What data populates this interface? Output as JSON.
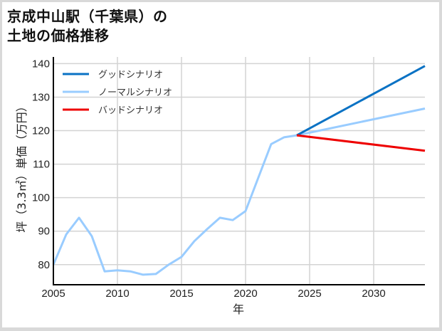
{
  "title_line1": "京成中山駅（千葉県）の",
  "title_line2": "土地の価格推移",
  "chart_data": {
    "type": "line",
    "title": "京成中山駅（千葉県）の土地の価格推移",
    "xlabel": "年",
    "ylabel": "坪（3.3㎡）単価（万円）",
    "xlim": [
      2005,
      2034
    ],
    "ylim": [
      74,
      142
    ],
    "x_ticks": [
      2005,
      2010,
      2015,
      2020,
      2025,
      2030
    ],
    "y_ticks": [
      80,
      90,
      100,
      110,
      120,
      130,
      140
    ],
    "grid": true,
    "legend_position": "upper left",
    "series": [
      {
        "name": "グッドシナリオ",
        "color": "#0a72c4",
        "x": [
          2024,
          2034
        ],
        "values": [
          118.6,
          139.3
        ]
      },
      {
        "name": "ノーマルシナリオ",
        "color": "#99ccff",
        "x": [
          2005,
          2006,
          2007,
          2008,
          2009,
          2010,
          2011,
          2012,
          2013,
          2014,
          2015,
          2016,
          2017,
          2018,
          2019,
          2020,
          2021,
          2022,
          2023,
          2024,
          2034
        ],
        "values": [
          80,
          89,
          94,
          88.5,
          78,
          78.3,
          78,
          77,
          77.2,
          80,
          82.3,
          87,
          90.6,
          94,
          93.3,
          96,
          106,
          116,
          118,
          118.6,
          126.6
        ]
      },
      {
        "name": "バッドシナリオ",
        "color": "#ee0000",
        "x": [
          2024,
          2034
        ],
        "values": [
          118.6,
          114
        ]
      }
    ]
  }
}
